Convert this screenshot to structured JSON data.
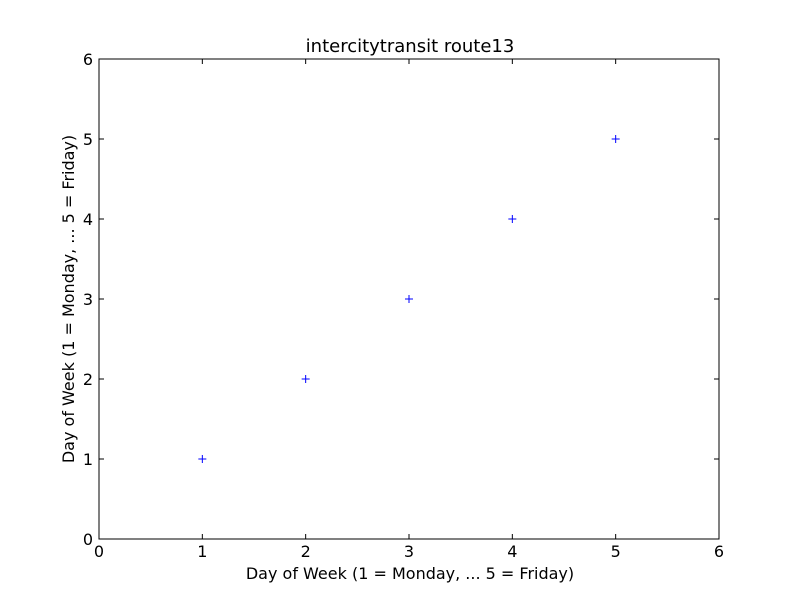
{
  "chart_data": {
    "type": "scatter",
    "title": "intercitytransit route13",
    "xlabel": "Day of Week (1 = Monday, ... 5 = Friday)",
    "ylabel": "Day of Week (1 = Monday, ... 5 = Friday)",
    "xlim": [
      0,
      6
    ],
    "ylim": [
      0,
      6
    ],
    "xticks": [
      0,
      1,
      2,
      3,
      4,
      5,
      6
    ],
    "yticks": [
      0,
      1,
      2,
      3,
      4,
      5,
      6
    ],
    "grid": false,
    "marker": "+",
    "marker_color": "#0000ff",
    "points": [
      {
        "x": 1,
        "y": 1
      },
      {
        "x": 2,
        "y": 2
      },
      {
        "x": 3,
        "y": 3
      },
      {
        "x": 4,
        "y": 4
      },
      {
        "x": 5,
        "y": 5
      }
    ]
  }
}
